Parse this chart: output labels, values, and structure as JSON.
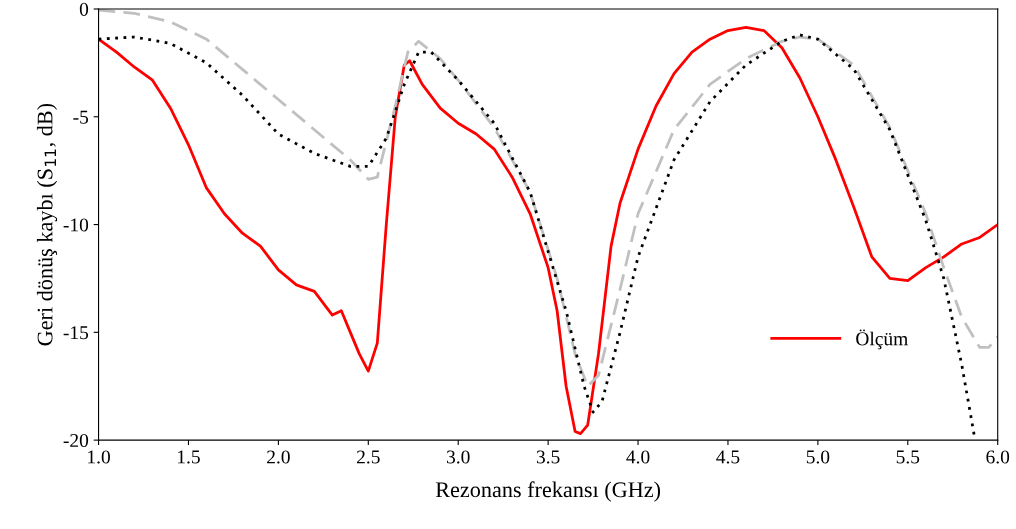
{
  "chart_data": {
    "type": "line",
    "xlabel": "Rezonans frekansı (GHz)",
    "ylabel": "Geri dönüş kaybı (S$_{11}$, dB)",
    "xlim": [
      1.0,
      6.0
    ],
    "ylim": [
      -20,
      0
    ],
    "xticks": [
      {
        "value": 1.0,
        "label": "1.0"
      },
      {
        "value": 1.5,
        "label": "1.5"
      },
      {
        "value": 2.0,
        "label": "2.0"
      },
      {
        "value": 2.5,
        "label": "2.5"
      },
      {
        "value": 3.0,
        "label": "3.0"
      },
      {
        "value": 3.5,
        "label": "3.5"
      },
      {
        "value": 4.0,
        "label": "4.0"
      },
      {
        "value": 4.5,
        "label": "4.5"
      },
      {
        "value": 5.0,
        "label": "5.0"
      },
      {
        "value": 5.5,
        "label": "5.5"
      },
      {
        "value": 6.0,
        "label": "6.0"
      }
    ],
    "yticks": [
      0,
      -5,
      -10,
      -15,
      -20
    ],
    "grid": false,
    "legend": "bottom right",
    "series": [
      {
        "name": "Ölçüm",
        "color": "#ff0000",
        "line_style": "solid",
        "x": [
          1.0,
          1.1,
          1.2,
          1.3,
          1.4,
          1.5,
          1.6,
          1.7,
          1.8,
          1.9,
          2.0,
          2.1,
          2.2,
          2.3,
          2.35,
          2.4,
          2.45,
          2.5,
          2.55,
          2.6,
          2.65,
          2.7,
          2.73,
          2.8,
          2.9,
          3.0,
          3.1,
          3.2,
          3.3,
          3.4,
          3.5,
          3.55,
          3.6,
          3.65,
          3.68,
          3.72,
          3.78,
          3.85,
          3.9,
          4.0,
          4.1,
          4.2,
          4.3,
          4.4,
          4.5,
          4.6,
          4.7,
          4.8,
          4.9,
          5.0,
          5.1,
          5.2,
          5.3,
          5.4,
          5.5,
          5.6,
          5.7,
          5.8,
          5.9,
          6.0
        ],
        "values": [
          -1.4,
          -2.0,
          -2.7,
          -3.3,
          -4.6,
          -6.3,
          -8.3,
          -9.5,
          -10.4,
          -11.0,
          -12.1,
          -12.8,
          -13.1,
          -14.2,
          -14.0,
          -15.0,
          -16.0,
          -16.8,
          -15.5,
          -10,
          -5,
          -2.6,
          -2.4,
          -3.5,
          -4.6,
          -5.3,
          -5.8,
          -6.5,
          -7.8,
          -9.5,
          -12.0,
          -14,
          -17.5,
          -19.6,
          -19.7,
          -19.3,
          -16,
          -11,
          -9,
          -6.5,
          -4.5,
          -3.0,
          -2.0,
          -1.4,
          -1.0,
          -0.85,
          -1.0,
          -1.8,
          -3.2,
          -5.0,
          -7.0,
          -9.2,
          -11.5,
          -12.5,
          -12.6,
          -12.0,
          -11.5,
          -10.9,
          -10.6,
          -10.0
        ]
      },
      {
        "color": "#c0c0c0",
        "line_style": "dashed",
        "x": [
          1.0,
          1.2,
          1.4,
          1.6,
          1.8,
          2.0,
          2.2,
          2.4,
          2.5,
          2.55,
          2.65,
          2.72,
          2.78,
          2.9,
          3.0,
          3.2,
          3.4,
          3.55,
          3.65,
          3.72,
          3.78,
          3.9,
          4.0,
          4.2,
          4.4,
          4.6,
          4.8,
          4.9,
          5.0,
          5.2,
          5.4,
          5.6,
          5.7,
          5.8,
          5.9,
          5.95,
          6.0
        ],
        "values": [
          -0.05,
          -0.2,
          -0.6,
          -1.4,
          -2.8,
          -4.2,
          -5.6,
          -7.0,
          -7.9,
          -7.8,
          -4.5,
          -2.0,
          -1.5,
          -2.3,
          -3.3,
          -5.5,
          -8.5,
          -12.5,
          -16,
          -17.5,
          -17,
          -13,
          -9.5,
          -5.6,
          -3.5,
          -2.3,
          -1.5,
          -1.3,
          -1.4,
          -2.6,
          -5.5,
          -9.5,
          -12,
          -14.3,
          -15.7,
          -15.7,
          -15.2
        ]
      },
      {
        "color": "#000000",
        "line_style": "dotted",
        "x": [
          1.0,
          1.2,
          1.4,
          1.6,
          1.8,
          2.0,
          2.2,
          2.4,
          2.5,
          2.6,
          2.7,
          2.78,
          2.85,
          3.0,
          3.2,
          3.4,
          3.6,
          3.7,
          3.75,
          3.8,
          3.9,
          4.0,
          4.2,
          4.4,
          4.6,
          4.8,
          4.9,
          5.0,
          5.2,
          5.4,
          5.6,
          5.7,
          5.8,
          5.87
        ],
        "values": [
          -1.4,
          -1.3,
          -1.6,
          -2.5,
          -4.0,
          -5.8,
          -6.7,
          -7.3,
          -7.3,
          -6.0,
          -3.5,
          -2.0,
          -2.0,
          -3.3,
          -5.3,
          -8.5,
          -14,
          -17.5,
          -18.7,
          -18.2,
          -15,
          -11.5,
          -7,
          -4.3,
          -2.6,
          -1.5,
          -1.2,
          -1.4,
          -2.8,
          -5.6,
          -9.8,
          -12.5,
          -16.5,
          -19.8
        ]
      }
    ]
  }
}
